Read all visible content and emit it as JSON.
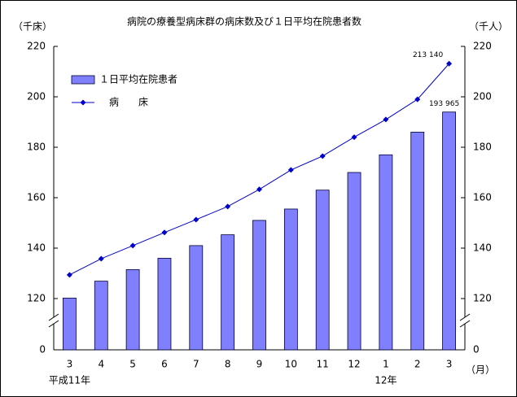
{
  "chart_data": {
    "type": "bar_line",
    "title": "病院の療養型病床群の病床数及び１日平均在院患者数",
    "y_label": "（千床）",
    "y2_label": "（千人）",
    "x_unit": "（月）",
    "categories": [
      "3",
      "4",
      "5",
      "6",
      "7",
      "8",
      "9",
      "10",
      "11",
      "12",
      "1",
      "2",
      "3"
    ],
    "year_labels": [
      "平成11年",
      null,
      null,
      null,
      null,
      null,
      null,
      null,
      null,
      null,
      "12年",
      null,
      null
    ],
    "series": [
      {
        "name": "１日平均在院患者",
        "type": "bar",
        "axis": "y2",
        "color": "#8080ff",
        "values": [
          120.2,
          126.9,
          131.5,
          136,
          141,
          145.3,
          151,
          155.5,
          163,
          170,
          177,
          186,
          193.965
        ],
        "value_labels": [
          null,
          null,
          null,
          null,
          null,
          null,
          null,
          null,
          null,
          null,
          null,
          null,
          "193 965"
        ]
      },
      {
        "name": "病　　床",
        "type": "line",
        "axis": "y",
        "color": "#0000cc",
        "values": [
          129.4,
          135.8,
          141,
          146.2,
          151.3,
          156.5,
          163.3,
          171,
          176.5,
          184,
          191,
          199,
          213.14
        ],
        "value_labels": [
          null,
          null,
          null,
          null,
          null,
          null,
          null,
          null,
          null,
          null,
          null,
          null,
          "213 140"
        ]
      }
    ],
    "ylim": [
      0,
      220
    ],
    "yticks": [
      0,
      120,
      140,
      160,
      180,
      200,
      220
    ],
    "y2lim": [
      0,
      220
    ],
    "y2ticks": [
      0,
      120,
      140,
      160,
      180,
      200,
      220
    ],
    "axis_break": true
  }
}
